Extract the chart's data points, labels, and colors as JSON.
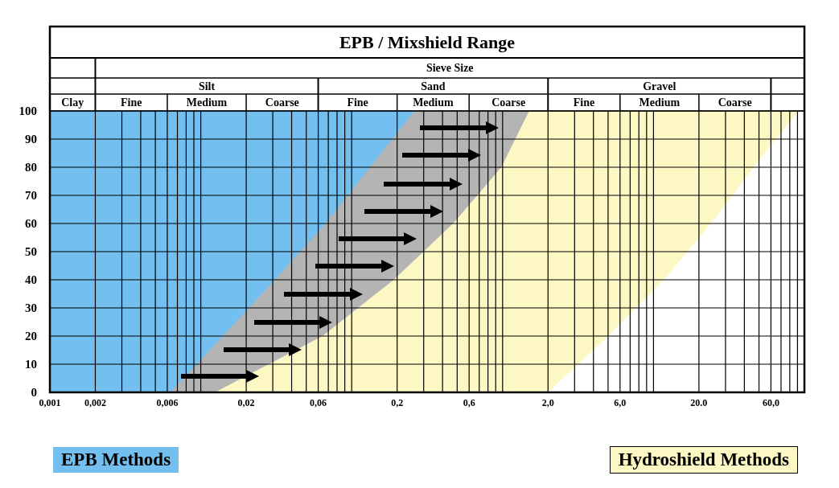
{
  "chart_data": {
    "type": "area",
    "title": "EPB / Mixshield Range",
    "annotations": [
      "Sieve Size",
      "Clay",
      "Silt",
      "Sand",
      "Gravel",
      "Fine",
      "Medium",
      "Coarse",
      "Fine",
      "Medium",
      "Coarse",
      "Fine",
      "Medium",
      "Coarse"
    ],
    "log": "x",
    "grid": true,
    "legend": "bottom",
    "xlim": [
      0.001,
      100
    ],
    "ylim": [
      0,
      100
    ],
    "xticks": [
      {
        "value": 0.001,
        "label": "0,001"
      },
      {
        "value": 0.002,
        "label": "0,002"
      },
      {
        "value": 0.003,
        "label": null
      },
      {
        "value": 0.004,
        "label": null
      },
      {
        "value": 0.005,
        "label": null
      },
      {
        "value": 0.006,
        "label": "0,006"
      },
      {
        "value": 0.007,
        "label": null
      },
      {
        "value": 0.008,
        "label": null
      },
      {
        "value": 0.009,
        "label": null
      },
      {
        "value": 0.01,
        "label": null
      },
      {
        "value": 0.02,
        "label": "0,02"
      },
      {
        "value": 0.03,
        "label": null
      },
      {
        "value": 0.04,
        "label": null
      },
      {
        "value": 0.05,
        "label": null
      },
      {
        "value": 0.06,
        "label": "0,06"
      },
      {
        "value": 0.07,
        "label": null
      },
      {
        "value": 0.08,
        "label": null
      },
      {
        "value": 0.09,
        "label": null
      },
      {
        "value": 0.1,
        "label": null
      },
      {
        "value": 0.2,
        "label": "0,2"
      },
      {
        "value": 0.3,
        "label": null
      },
      {
        "value": 0.4,
        "label": null
      },
      {
        "value": 0.5,
        "label": null
      },
      {
        "value": 0.6,
        "label": "0,6"
      },
      {
        "value": 0.7,
        "label": null
      },
      {
        "value": 0.8,
        "label": null
      },
      {
        "value": 0.9,
        "label": null
      },
      {
        "value": 1,
        "label": null
      },
      {
        "value": 2,
        "label": "2,0"
      },
      {
        "value": 3,
        "label": null
      },
      {
        "value": 4,
        "label": null
      },
      {
        "value": 5,
        "label": null
      },
      {
        "value": 6,
        "label": "6,0"
      },
      {
        "value": 7,
        "label": null
      },
      {
        "value": 8,
        "label": null
      },
      {
        "value": 9,
        "label": null
      },
      {
        "value": 10,
        "label": null
      },
      {
        "value": 20,
        "label": "20.0"
      },
      {
        "value": 30,
        "label": null
      },
      {
        "value": 40,
        "label": null
      },
      {
        "value": 50,
        "label": null
      },
      {
        "value": 60,
        "label": "60,0"
      },
      {
        "value": 70,
        "label": null
      },
      {
        "value": 80,
        "label": null
      },
      {
        "value": 90,
        "label": null
      },
      {
        "value": 100,
        "label": null
      }
    ],
    "yticks": [
      0,
      10,
      20,
      30,
      40,
      50,
      60,
      70,
      80,
      90,
      100
    ],
    "series": [
      {
        "name": "EPB Methods",
        "color": "#72bff0",
        "x": [
          0.001,
          0.26
        ],
        "values": [
          100,
          100
        ]
      },
      {
        "color": "#b4b4b4",
        "x": [
          0.0063,
          0.014,
          0.031,
          0.067,
          0.132,
          0.26,
          1.5
        ],
        "values": [
          0,
          20,
          40,
          60,
          80,
          100,
          100
        ]
      },
      {
        "name": "Hydroshield Methods",
        "color": "#fdf7c3",
        "x": [
          0.0124,
          0.064,
          0.19,
          0.47,
          0.98,
          1.5,
          92
        ],
        "values": [
          0,
          20,
          40,
          60,
          80,
          100,
          100
        ]
      },
      {
        "color": "#ffffff",
        "x": [
          2,
          5,
          11.7,
          24,
          46,
          92,
          100
        ],
        "values": [
          0,
          20,
          40,
          60,
          80,
          100,
          100
        ]
      }
    ]
  }
}
